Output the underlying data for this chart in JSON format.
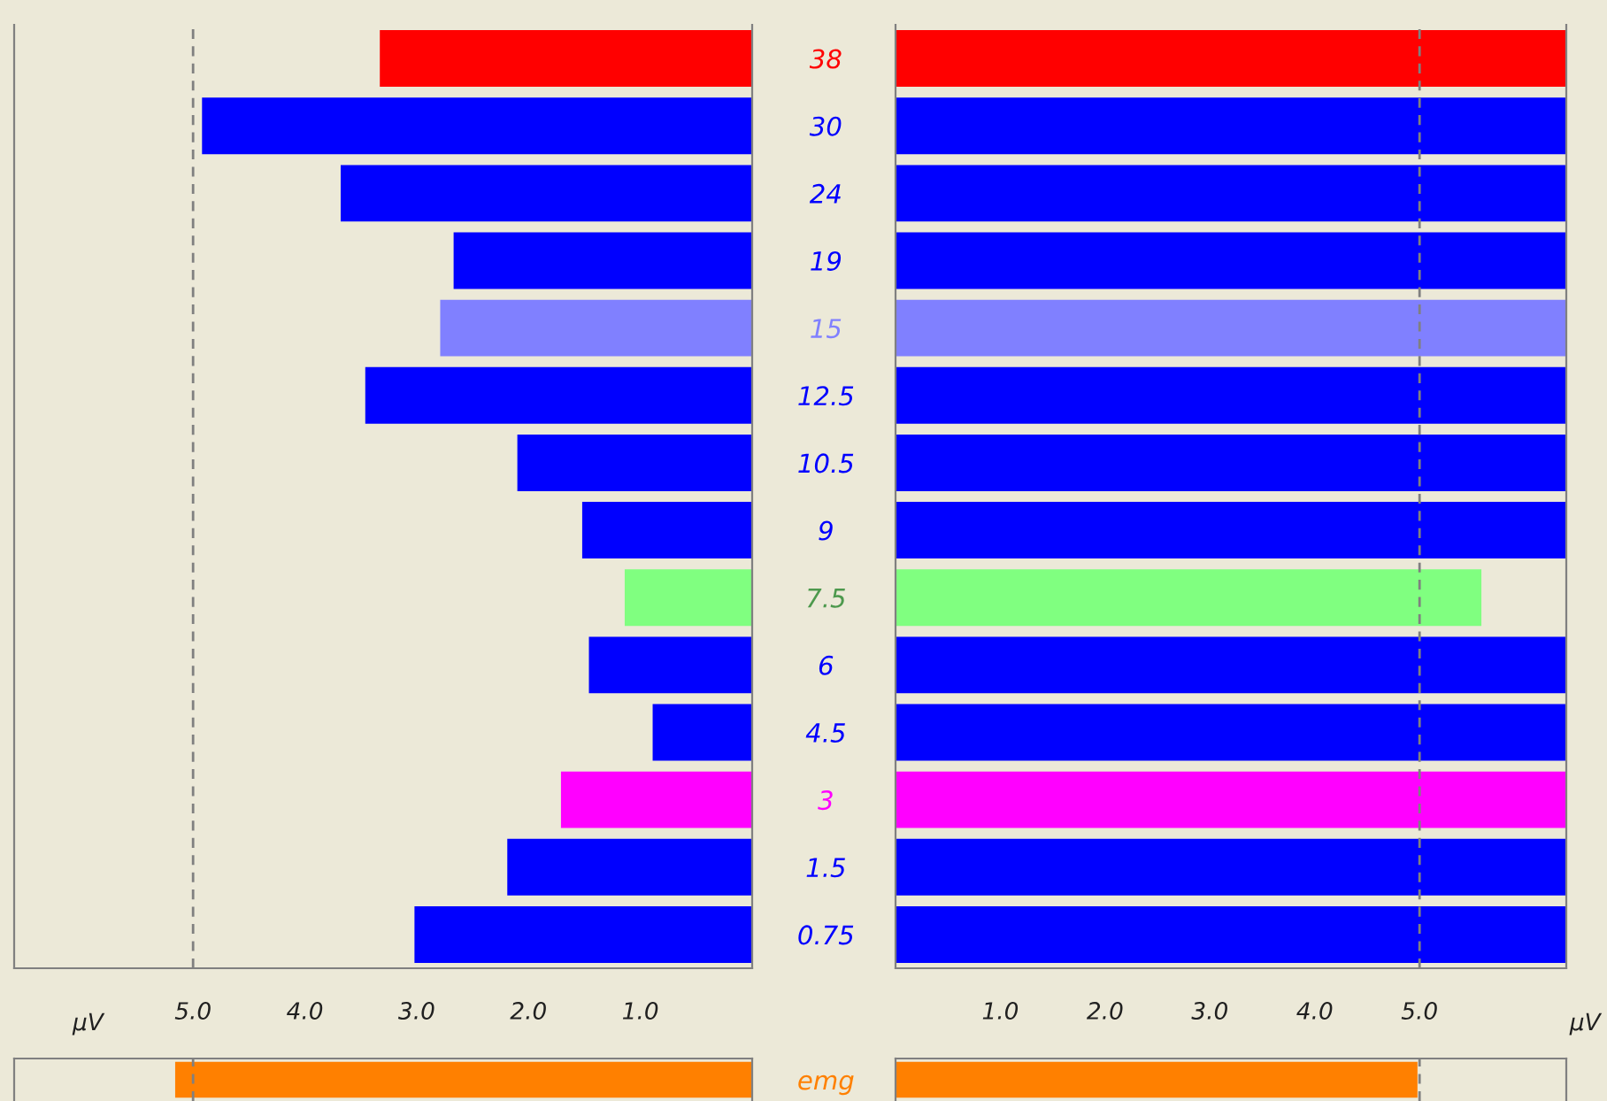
{
  "chart_data": [
    {
      "type": "bar",
      "orientation": "horizontal",
      "categories": [
        "38",
        "30",
        "24",
        "19",
        "15",
        "12.5",
        "10.5",
        "9",
        "7.5",
        "6",
        "4.5",
        "3",
        "1.5",
        "0.75"
      ],
      "values": [
        3.33,
        4.92,
        3.68,
        2.67,
        2.79,
        3.46,
        2.1,
        1.52,
        1.14,
        1.46,
        0.89,
        1.71,
        2.19,
        3.02
      ],
      "colors": [
        "#ff0000",
        "#0000ff",
        "#0000ff",
        "#0000ff",
        "#8080ff",
        "#0000ff",
        "#0000ff",
        "#0000ff",
        "#80ff80",
        "#0000ff",
        "#0000ff",
        "#ff00ff",
        "#0000ff",
        "#0000ff"
      ],
      "xlim": [
        6.6,
        0
      ],
      "tick_labels": "y",
      "ref_lines": [
        {
          "axis": "x",
          "value": 5,
          "color": "#808080",
          "line_style": "dashed"
        }
      ]
    },
    {
      "type": "bar",
      "orientation": "horizontal",
      "categories": [
        "38",
        "30",
        "24",
        "19",
        "15",
        "12.5",
        "10.5",
        "9",
        "7.5",
        "6",
        "4.5",
        "3",
        "1.5",
        "0.75"
      ],
      "values": [
        6.4,
        6.4,
        6.4,
        6.4,
        6.4,
        6.4,
        6.4,
        6.4,
        5.59,
        6.4,
        6.4,
        6.4,
        6.4,
        6.4
      ],
      "colors": [
        "#ff0000",
        "#0000ff",
        "#0000ff",
        "#0000ff",
        "#8080ff",
        "#0000ff",
        "#0000ff",
        "#0000ff",
        "#80ff80",
        "#0000ff",
        "#0000ff",
        "#ff00ff",
        "#0000ff",
        "#0000ff"
      ],
      "xlim": [
        0,
        6.4
      ],
      "tick_labels": false,
      "ref_lines": [
        {
          "axis": "x",
          "value": 5,
          "color": "#808080",
          "line_style": "dashed"
        }
      ]
    },
    {
      "type": "bar",
      "orientation": "horizontal",
      "categories": [
        "emg"
      ],
      "values": [
        5.16
      ],
      "colors": [
        "#ff8000"
      ],
      "xlim": [
        6.6,
        0
      ],
      "xticks": [
        {
          "value": 5,
          "label": "5.0"
        },
        {
          "value": 4,
          "label": "4.0"
        },
        {
          "value": 3,
          "label": "3.0"
        },
        {
          "value": 2,
          "label": "2.0"
        },
        {
          "value": 1,
          "label": "1.0"
        }
      ],
      "xlabel": "μV",
      "ref_lines": [
        {
          "axis": "x",
          "value": 5,
          "color": "#808080",
          "line_style": "dashed"
        }
      ]
    },
    {
      "type": "bar",
      "orientation": "horizontal",
      "categories": [
        null
      ],
      "values": [
        4.98
      ],
      "colors": [
        "#ff8000"
      ],
      "xlim": [
        0,
        6.4
      ],
      "xticks": [
        {
          "value": 1,
          "label": "1.0"
        },
        {
          "value": 2,
          "label": "2.0"
        },
        {
          "value": 3,
          "label": "3.0"
        },
        {
          "value": 4,
          "label": "4.0"
        },
        {
          "value": 5,
          "label": "5.0"
        }
      ],
      "xlabel": "μV",
      "ref_lines": [
        {
          "axis": "x",
          "value": 5,
          "color": "#808080",
          "line_style": "dashed"
        }
      ]
    }
  ]
}
